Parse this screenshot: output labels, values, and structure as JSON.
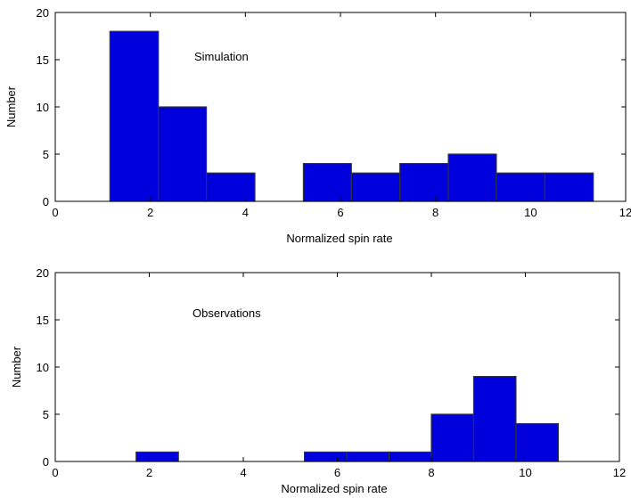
{
  "chart_data": [
    {
      "type": "bar",
      "title": "",
      "annotation": "Simulation",
      "xlabel": "Normalized spin rate",
      "ylabel": "Number",
      "xlim": [
        0,
        12
      ],
      "ylim": [
        0,
        20
      ],
      "xticks": [
        0,
        2,
        4,
        6,
        8,
        10,
        12
      ],
      "yticks": [
        0,
        5,
        10,
        15,
        20
      ],
      "bar_color": "#0000DD",
      "bars": [
        {
          "x0": 1.15,
          "x1": 2.17,
          "value": 18
        },
        {
          "x0": 2.17,
          "x1": 3.18,
          "value": 10
        },
        {
          "x0": 3.18,
          "x1": 4.2,
          "value": 3
        },
        {
          "x0": 5.22,
          "x1": 6.23,
          "value": 4
        },
        {
          "x0": 6.23,
          "x1": 7.25,
          "value": 3
        },
        {
          "x0": 7.25,
          "x1": 8.27,
          "value": 4
        },
        {
          "x0": 8.27,
          "x1": 9.28,
          "value": 5
        },
        {
          "x0": 9.28,
          "x1": 10.3,
          "value": 3
        },
        {
          "x0": 10.3,
          "x1": 11.32,
          "value": 3
        }
      ]
    },
    {
      "type": "bar",
      "title": "",
      "annotation": "Observations",
      "xlabel": "Normalized spin rate",
      "ylabel": "Number",
      "xlim": [
        0,
        12
      ],
      "ylim": [
        0,
        20
      ],
      "xticks": [
        0,
        2,
        4,
        6,
        8,
        10,
        12
      ],
      "yticks": [
        0,
        5,
        10,
        15,
        20
      ],
      "bar_color": "#0000DD",
      "bars": [
        {
          "x0": 1.72,
          "x1": 2.62,
          "value": 1
        },
        {
          "x0": 5.3,
          "x1": 6.2,
          "value": 1
        },
        {
          "x0": 6.2,
          "x1": 7.1,
          "value": 1
        },
        {
          "x0": 7.1,
          "x1": 8.0,
          "value": 1
        },
        {
          "x0": 8.0,
          "x1": 8.9,
          "value": 5
        },
        {
          "x0": 8.9,
          "x1": 9.8,
          "value": 9
        },
        {
          "x0": 9.8,
          "x1": 10.7,
          "value": 4
        }
      ]
    }
  ]
}
